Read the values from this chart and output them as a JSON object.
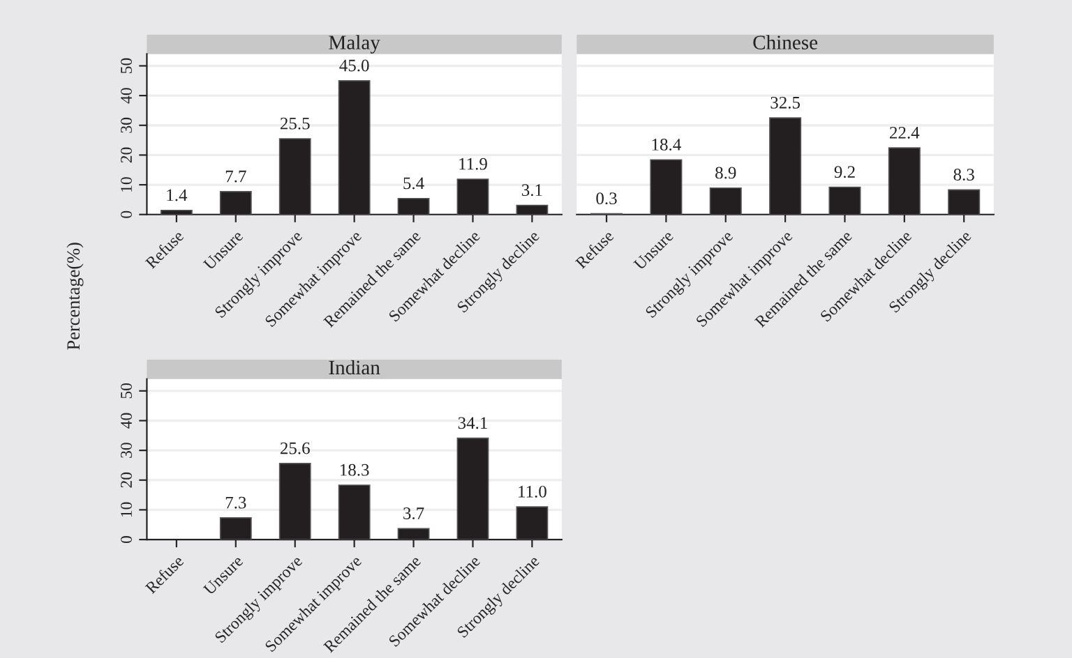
{
  "chart_data": [
    {
      "type": "bar",
      "title": "Malay",
      "ylabel": "Percentage(%)",
      "categories": [
        "Refuse",
        "Unsure",
        "Strongly improve",
        "Somewhat improve",
        "Remained the same",
        "Somewhat decline",
        "Strongly decline"
      ],
      "series": [
        {
          "color": "#231f20",
          "values": [
            1.4,
            7.7,
            25.5,
            45.0,
            5.4,
            11.9,
            3.1
          ],
          "value_labels": [
            "1.4",
            "7.7",
            "25.5",
            "45.0",
            "5.4",
            "11.9",
            "3.1"
          ]
        }
      ],
      "ylim": [
        0,
        54
      ],
      "yticks": [
        0,
        10,
        20,
        30,
        40,
        50
      ],
      "grid": "y",
      "legend": false
    },
    {
      "type": "bar",
      "title": "Chinese",
      "categories": [
        "Refuse",
        "Unsure",
        "Strongly improve",
        "Somewhat improve",
        "Remained the same",
        "Somewhat decline",
        "Strongly decline"
      ],
      "series": [
        {
          "color": "#231f20",
          "values": [
            0.3,
            18.4,
            8.9,
            32.5,
            9.2,
            22.4,
            8.3
          ],
          "value_labels": [
            "0.3",
            "18.4",
            "8.9",
            "32.5",
            "9.2",
            "22.4",
            "8.3"
          ]
        }
      ],
      "ylim": [
        0,
        54
      ],
      "yticks": [
        0,
        10,
        20,
        30,
        40,
        50
      ],
      "grid": "y",
      "legend": false,
      "tick_labels": "x"
    },
    {
      "type": "bar",
      "title": "Indian",
      "categories": [
        "Refuse",
        "Unsure",
        "Strongly improve",
        "Somewhat improve",
        "Remained the same",
        "Somewhat decline",
        "Strongly decline"
      ],
      "series": [
        {
          "color": "#231f20",
          "values": [
            null,
            7.3,
            25.6,
            18.3,
            3.7,
            34.1,
            11.0
          ],
          "value_labels": [
            null,
            "7.3",
            "25.6",
            "18.3",
            "3.7",
            "34.1",
            "11.0"
          ]
        }
      ],
      "ylim": [
        0,
        54
      ],
      "yticks": [
        0,
        10,
        20,
        30,
        40,
        50
      ],
      "grid": "y",
      "legend": false
    }
  ]
}
